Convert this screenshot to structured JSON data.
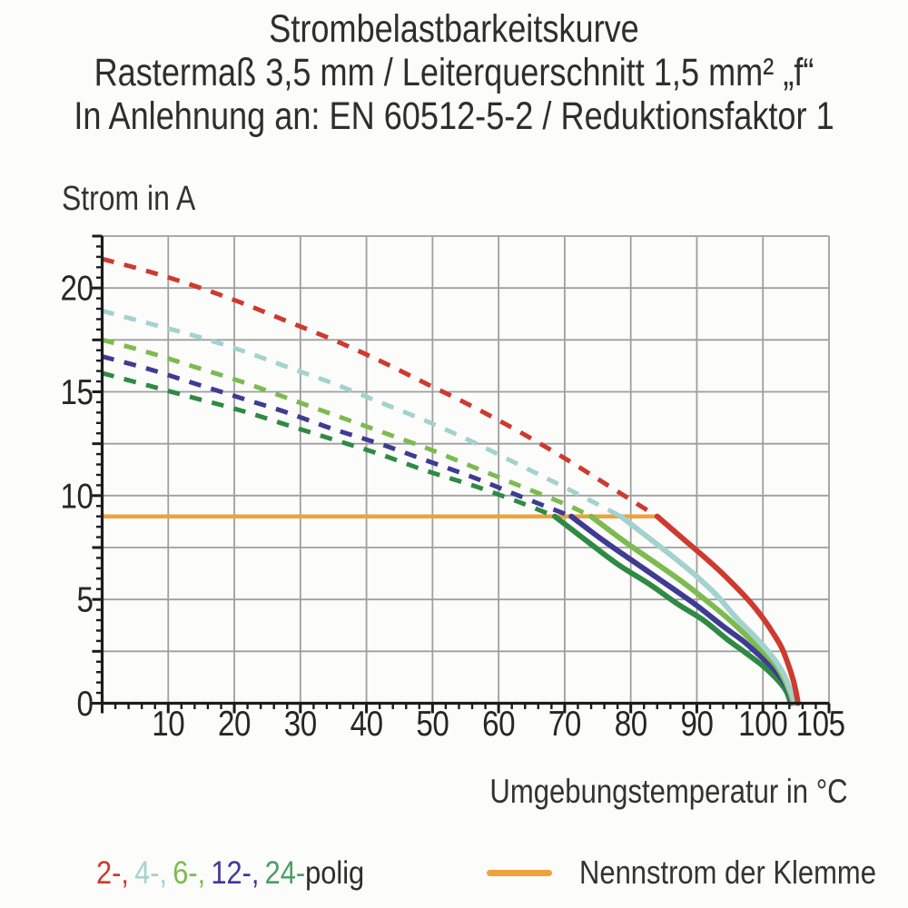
{
  "title": {
    "line1": "Strombelastbarkeitskurve",
    "line2": "Rastermaß 3,5 mm / Leiterquerschnitt 1,5 mm² „f“",
    "line3": "In Anlehnung an: EN 60512-5-2 / Reduktionsfaktor 1"
  },
  "chart_data": {
    "type": "line",
    "title": "Strombelastbarkeitskurve",
    "xlabel": "Umgebungstemperatur in °C",
    "ylabel": "Strom in A",
    "xlim": [
      0,
      110
    ],
    "ylim": [
      0,
      22.5
    ],
    "x_ticks": [
      10,
      20,
      30,
      40,
      50,
      60,
      70,
      80,
      90,
      100,
      105
    ],
    "x_tick_dx": {
      "105": 27
    },
    "y_ticks": [
      0,
      5,
      10,
      15,
      20
    ],
    "x_minor_step": 2,
    "y_minor_step": 0.5,
    "x_grid_step": 10,
    "y_grid_step": 2.5,
    "grid_on": true,
    "grid_color": "#9f9f9f",
    "axis_color": "#1c1c1c",
    "nominal_current": {
      "label": "Nennstrom der Klemme",
      "value": 9,
      "x_start": 0,
      "x_end": 83.7,
      "color": "#eca33d"
    },
    "series": [
      {
        "name": "2-polig",
        "color": "#ce3a2e",
        "style_above_nominal": "dashed",
        "style_below_nominal": "solid",
        "dashed": [
          [
            0,
            21.4
          ],
          [
            7,
            20.8
          ],
          [
            14,
            20.1
          ],
          [
            21,
            19.3
          ],
          [
            28,
            18.4
          ],
          [
            35,
            17.5
          ],
          [
            42,
            16.5
          ],
          [
            49,
            15.4
          ],
          [
            56,
            14.3
          ],
          [
            63,
            13.1
          ],
          [
            70,
            11.8
          ],
          [
            77,
            10.4
          ],
          [
            84,
            9
          ]
        ],
        "solid": [
          [
            84,
            9
          ],
          [
            88,
            7.9
          ],
          [
            92,
            6.8
          ],
          [
            95,
            5.9
          ],
          [
            98,
            4.9
          ],
          [
            100,
            4.1
          ],
          [
            101.5,
            3.4
          ],
          [
            102.8,
            2.7
          ],
          [
            103.8,
            1.9
          ],
          [
            104.6,
            1.1
          ],
          [
            105.1,
            0.4
          ],
          [
            105.3,
            0
          ]
        ]
      },
      {
        "name": "4-polig",
        "color": "#a3d2cf",
        "style_above_nominal": "dashed",
        "style_below_nominal": "solid",
        "dashed": [
          [
            0,
            18.9
          ],
          [
            7,
            18.3
          ],
          [
            14,
            17.7
          ],
          [
            21,
            17
          ],
          [
            28,
            16.2
          ],
          [
            35,
            15.4
          ],
          [
            42,
            14.5
          ],
          [
            49,
            13.6
          ],
          [
            56,
            12.6
          ],
          [
            63,
            11.5
          ],
          [
            70,
            10.4
          ],
          [
            78.5,
            9
          ]
        ],
        "solid": [
          [
            78.5,
            9
          ],
          [
            83,
            7.9
          ],
          [
            87,
            6.9
          ],
          [
            90,
            6.1
          ],
          [
            93,
            5.2
          ],
          [
            96,
            4.1
          ],
          [
            98.5,
            3.3
          ],
          [
            100.5,
            2.6
          ],
          [
            102,
            2
          ],
          [
            103.3,
            1.3
          ],
          [
            104.3,
            0.5
          ],
          [
            104.8,
            0
          ]
        ]
      },
      {
        "name": "6-polig",
        "color": "#7dba4f",
        "style_above_nominal": "dashed",
        "style_below_nominal": "solid",
        "dashed": [
          [
            0,
            17.5
          ],
          [
            7,
            16.9
          ],
          [
            14,
            16.2
          ],
          [
            21,
            15.5
          ],
          [
            28,
            14.7
          ],
          [
            35,
            13.9
          ],
          [
            42,
            13.1
          ],
          [
            49,
            12.3
          ],
          [
            56,
            11.4
          ],
          [
            63,
            10.5
          ],
          [
            70,
            9.6
          ],
          [
            74,
            9
          ]
        ],
        "solid": [
          [
            74,
            9
          ],
          [
            79,
            7.8
          ],
          [
            84,
            6.7
          ],
          [
            88,
            5.8
          ],
          [
            92,
            4.8
          ],
          [
            95,
            4
          ],
          [
            98,
            3.1
          ],
          [
            100.3,
            2.4
          ],
          [
            102,
            1.8
          ],
          [
            103.3,
            1.1
          ],
          [
            104.2,
            0.4
          ],
          [
            104.5,
            0
          ]
        ]
      },
      {
        "name": "12-polig",
        "color": "#3f3b93",
        "style_above_nominal": "dashed",
        "style_below_nominal": "solid",
        "dashed": [
          [
            0,
            16.7
          ],
          [
            7,
            16.1
          ],
          [
            14,
            15.4
          ],
          [
            21,
            14.7
          ],
          [
            28,
            14
          ],
          [
            35,
            13.2
          ],
          [
            42,
            12.5
          ],
          [
            49,
            11.7
          ],
          [
            56,
            10.9
          ],
          [
            63,
            10
          ],
          [
            71,
            9
          ]
        ],
        "solid": [
          [
            71,
            9
          ],
          [
            76,
            7.8
          ],
          [
            81,
            6.7
          ],
          [
            86,
            5.6
          ],
          [
            90,
            4.7
          ],
          [
            94,
            3.7
          ],
          [
            97,
            3
          ],
          [
            99.5,
            2.3
          ],
          [
            101.5,
            1.7
          ],
          [
            103,
            1.1
          ],
          [
            104,
            0.5
          ],
          [
            104.4,
            0
          ]
        ]
      },
      {
        "name": "24-polig",
        "color": "#2f8a44",
        "style_above_nominal": "dashed",
        "style_below_nominal": "solid",
        "dashed": [
          [
            0,
            15.9
          ],
          [
            7,
            15.3
          ],
          [
            14,
            14.7
          ],
          [
            21,
            14.1
          ],
          [
            28,
            13.4
          ],
          [
            35,
            12.7
          ],
          [
            42,
            12
          ],
          [
            49,
            11.2
          ],
          [
            56,
            10.5
          ],
          [
            63,
            9.7
          ],
          [
            68.5,
            9
          ]
        ],
        "solid": [
          [
            68.5,
            9
          ],
          [
            73,
            7.9
          ],
          [
            78,
            6.7
          ],
          [
            83,
            5.7
          ],
          [
            87,
            4.8
          ],
          [
            91,
            4
          ],
          [
            94.5,
            3.1
          ],
          [
            97.5,
            2.4
          ],
          [
            100,
            1.8
          ],
          [
            102,
            1.2
          ],
          [
            103.5,
            0.6
          ],
          [
            104.2,
            0
          ]
        ]
      }
    ]
  },
  "legend": {
    "pole_items": [
      {
        "text": "2-,",
        "color": "#ce3a2e"
      },
      {
        "text": "4-,",
        "color": "#a3d2cf"
      },
      {
        "text": "6-,",
        "color": "#7dba4f"
      },
      {
        "text": "12-,",
        "color": "#3f3b93"
      },
      {
        "text": "24-",
        "color": "#4c9e63"
      }
    ],
    "poles_suffix": "polig",
    "nominal_label": "Nennstrom der Klemme"
  }
}
